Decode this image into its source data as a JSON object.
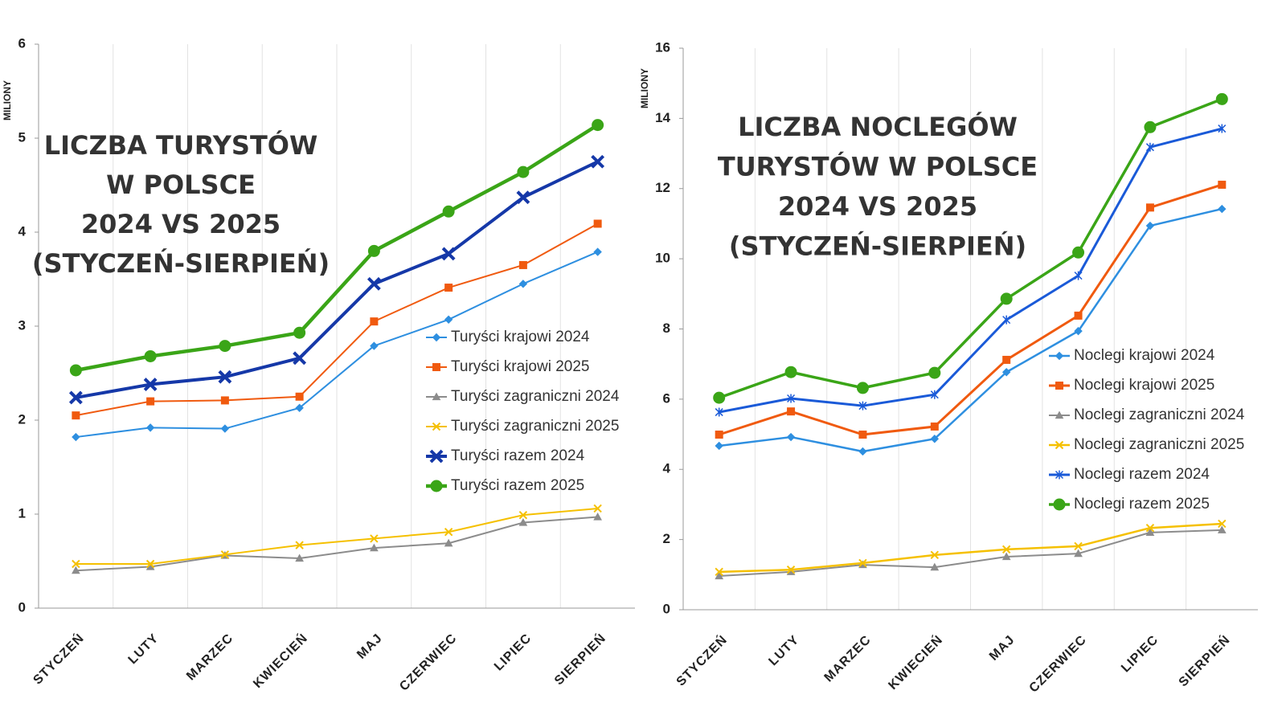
{
  "chart_data": [
    {
      "type": "line",
      "title": [
        "LICZBA TURYSTÓW",
        "W POLSCE",
        "2024 VS 2025",
        "(STYCZEŃ-SIERPIEŃ)"
      ],
      "y_label": "MILIONY",
      "categories": [
        "STYCZEŃ",
        "LUTY",
        "MARZEC",
        "KWIECIEŃ",
        "MAJ",
        "CZERWIEC",
        "LIPIEC",
        "SIERPIEŃ"
      ],
      "ylim": [
        0,
        6
      ],
      "yticks": [
        0,
        1,
        2,
        3,
        4,
        5,
        6
      ],
      "grid": true,
      "series": [
        {
          "name": "Turyści krajowi 2024",
          "color": "#2e8fe0",
          "marker": "diamond",
          "values": [
            1.82,
            1.92,
            1.91,
            2.13,
            2.79,
            3.07,
            3.45,
            3.79
          ]
        },
        {
          "name": "Turyści krajowi 2025",
          "color": "#f05a0f",
          "marker": "square",
          "values": [
            2.05,
            2.2,
            2.21,
            2.25,
            3.05,
            3.41,
            3.65,
            4.09
          ]
        },
        {
          "name": "Turyści zagraniczni 2024",
          "color": "#8c8c8c",
          "marker": "triangle",
          "values": [
            0.4,
            0.44,
            0.56,
            0.53,
            0.64,
            0.69,
            0.91,
            0.97
          ]
        },
        {
          "name": "Turyści zagraniczni 2025",
          "color": "#f5c000",
          "marker": "x",
          "values": [
            0.47,
            0.47,
            0.57,
            0.67,
            0.74,
            0.81,
            0.99,
            1.06
          ]
        },
        {
          "name": "Turyści razem 2024",
          "color": "#1538a8",
          "marker": "xbig",
          "values": [
            2.24,
            2.38,
            2.46,
            2.66,
            3.45,
            3.77,
            4.37,
            4.75
          ]
        },
        {
          "name": "Turyści razem 2025",
          "color": "#3aa517",
          "marker": "circle",
          "values": [
            2.53,
            2.68,
            2.79,
            2.93,
            3.8,
            4.22,
            4.64,
            5.14
          ]
        }
      ]
    },
    {
      "type": "line",
      "title": [
        "LICZBA NOCLEGÓW",
        "TURYSTÓW W POLSCE",
        "2024 VS 2025",
        "(STYCZEŃ-SIERPIEŃ)"
      ],
      "y_label": "MILIONY",
      "categories": [
        "STYCZEŃ",
        "LUTY",
        "MARZEC",
        "KWIECIEŃ",
        "MAJ",
        "CZERWIEC",
        "LIPIEC",
        "SIERPIEŃ"
      ],
      "ylim": [
        0,
        16
      ],
      "yticks": [
        0,
        2,
        4,
        6,
        8,
        10,
        12,
        14,
        16
      ],
      "grid": true,
      "series": [
        {
          "name": "Noclegi krajowi 2024",
          "color": "#2e8fe0",
          "marker": "diamond",
          "values": [
            4.67,
            4.92,
            4.51,
            4.87,
            6.77,
            7.94,
            10.94,
            11.42
          ]
        },
        {
          "name": "Noclegi krajowi 2025",
          "color": "#f05a0f",
          "marker": "square",
          "values": [
            4.99,
            5.65,
            4.99,
            5.22,
            7.12,
            8.38,
            11.46,
            12.11
          ]
        },
        {
          "name": "Noclegi zagraniczni 2024",
          "color": "#8c8c8c",
          "marker": "triangle",
          "values": [
            0.96,
            1.08,
            1.28,
            1.21,
            1.51,
            1.6,
            2.2,
            2.27
          ]
        },
        {
          "name": "Noclegi zagraniczni 2025",
          "color": "#f5c000",
          "marker": "x",
          "values": [
            1.08,
            1.14,
            1.33,
            1.56,
            1.72,
            1.81,
            2.33,
            2.45
          ]
        },
        {
          "name": "Noclegi razem 2024",
          "color": "#1a5ad8",
          "marker": "star",
          "values": [
            5.63,
            6.02,
            5.81,
            6.13,
            8.26,
            9.52,
            13.18,
            13.71
          ]
        },
        {
          "name": "Noclegi razem 2025",
          "color": "#3aa517",
          "marker": "circle",
          "values": [
            6.04,
            6.77,
            6.32,
            6.75,
            8.86,
            10.18,
            13.75,
            14.55
          ]
        }
      ]
    }
  ]
}
